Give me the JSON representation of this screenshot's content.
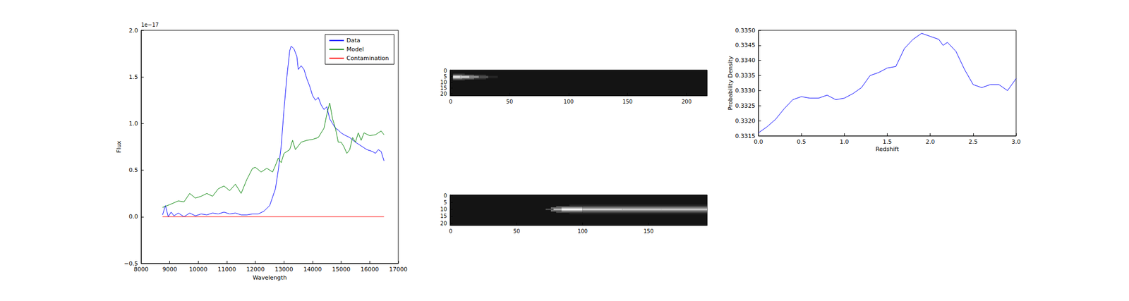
{
  "chart_data": [
    {
      "type": "line",
      "xlabel": "Wavelength",
      "ylabel": "Flux",
      "annotation": "1e−17",
      "xlim": [
        8000,
        17000
      ],
      "xticks": [
        8000,
        9000,
        10000,
        11000,
        12000,
        13000,
        14000,
        15000,
        16000,
        17000
      ],
      "ylim": [
        -0.5,
        2.0
      ],
      "yticks": [
        {
          "value": -0.5,
          "label": "−0.5"
        },
        {
          "value": 0,
          "label": "0.0"
        },
        0.5,
        {
          "value": 1.0,
          "label": "1.0"
        },
        1.5,
        {
          "value": 2.0,
          "label": "2.0"
        }
      ],
      "legend": "upper right",
      "series": [
        {
          "name": "Data",
          "color": "#0000ff",
          "x": [
            8750,
            8850,
            8950,
            9050,
            9150,
            9300,
            9500,
            9700,
            9900,
            10100,
            10300,
            10500,
            10700,
            10900,
            11100,
            11300,
            11500,
            11700,
            11900,
            12100,
            12300,
            12500,
            12700,
            12800,
            12900,
            13000,
            13100,
            13200,
            13250,
            13350,
            13450,
            13500,
            13600,
            13700,
            13800,
            13900,
            14000,
            14100,
            14200,
            14300,
            14400,
            14500,
            14600,
            14700,
            14800,
            14900,
            15000,
            15100,
            15300,
            15500,
            15700,
            15900,
            16100,
            16200,
            16300,
            16400,
            16500
          ],
          "values": [
            0.02,
            0.12,
            0.0,
            0.05,
            0.01,
            0.04,
            0.0,
            0.04,
            0.01,
            0.03,
            0.02,
            0.04,
            0.03,
            0.05,
            0.03,
            0.04,
            0.02,
            0.02,
            0.03,
            0.03,
            0.06,
            0.12,
            0.3,
            0.5,
            0.75,
            1.15,
            1.5,
            1.78,
            1.83,
            1.8,
            1.72,
            1.58,
            1.62,
            1.58,
            1.48,
            1.4,
            1.3,
            1.25,
            1.28,
            1.2,
            1.15,
            1.18,
            1.05,
            1.0,
            0.95,
            0.93,
            0.9,
            0.88,
            0.85,
            0.8,
            0.76,
            0.72,
            0.7,
            0.68,
            0.72,
            0.7,
            0.6
          ]
        },
        {
          "name": "Model",
          "color": "#008000",
          "x": [
            8750,
            9000,
            9300,
            9500,
            9700,
            9900,
            10100,
            10300,
            10500,
            10700,
            10900,
            11100,
            11300,
            11500,
            11700,
            11900,
            12000,
            12200,
            12400,
            12600,
            12700,
            12800,
            12900,
            13000,
            13200,
            13300,
            13400,
            13600,
            13800,
            14000,
            14200,
            14400,
            14500,
            14600,
            14700,
            14800,
            14900,
            15000,
            15100,
            15200,
            15300,
            15400,
            15500,
            15600,
            15700,
            15800,
            16000,
            16200,
            16400,
            16500
          ],
          "values": [
            0.1,
            0.13,
            0.17,
            0.16,
            0.25,
            0.2,
            0.22,
            0.25,
            0.22,
            0.3,
            0.33,
            0.28,
            0.35,
            0.25,
            0.4,
            0.52,
            0.53,
            0.48,
            0.52,
            0.48,
            0.55,
            0.63,
            0.58,
            0.68,
            0.72,
            0.82,
            0.72,
            0.8,
            0.82,
            0.83,
            0.85,
            0.95,
            1.1,
            1.22,
            1.05,
            0.95,
            0.8,
            0.8,
            0.75,
            0.68,
            0.72,
            0.85,
            0.8,
            0.9,
            0.82,
            0.9,
            0.87,
            0.88,
            0.92,
            0.88
          ]
        },
        {
          "name": "Contamination",
          "color": "#ff0000",
          "x": [
            8750,
            16500
          ],
          "values": [
            0,
            0
          ]
        }
      ]
    },
    {
      "type": "image",
      "xlim": [
        -0.5,
        217.5
      ],
      "xticks": [
        0,
        50,
        100,
        150,
        200
      ],
      "ylim": [
        21.5,
        -0.5
      ],
      "yticks": [
        0,
        5,
        10,
        15,
        20
      ],
      "value_range": [
        0,
        1
      ],
      "background": 0.08,
      "cells": [
        [
          2,
          12,
          3,
          0.2
        ],
        [
          2,
          10,
          4,
          0.5
        ],
        [
          10,
          20,
          4,
          0.35
        ],
        [
          20,
          30,
          4,
          0.2
        ],
        [
          2,
          8,
          5,
          0.9
        ],
        [
          8,
          16,
          5,
          0.8
        ],
        [
          16,
          24,
          5,
          0.55
        ],
        [
          24,
          32,
          5,
          0.3
        ],
        [
          32,
          40,
          5,
          0.15
        ],
        [
          2,
          8,
          6,
          1.0
        ],
        [
          8,
          16,
          6,
          0.9
        ],
        [
          16,
          24,
          6,
          0.6
        ],
        [
          24,
          32,
          6,
          0.35
        ],
        [
          32,
          40,
          6,
          0.15
        ],
        [
          2,
          10,
          7,
          0.55
        ],
        [
          10,
          20,
          7,
          0.4
        ],
        [
          20,
          30,
          7,
          0.2
        ],
        [
          2,
          12,
          8,
          0.2
        ]
      ]
    },
    {
      "type": "image",
      "xlim": [
        -0.5,
        194.5
      ],
      "xticks": [
        0,
        50,
        100,
        150
      ],
      "ylim": [
        21.5,
        -0.5
      ],
      "yticks": [
        0,
        5,
        10,
        15,
        20
      ],
      "value_range": [
        0,
        1
      ],
      "background": 0.08,
      "cells": [
        [
          90,
          195,
          7,
          0.15
        ],
        [
          80,
          100,
          8,
          0.3
        ],
        [
          100,
          195,
          8,
          0.3
        ],
        [
          76,
          84,
          9,
          0.45
        ],
        [
          84,
          100,
          9,
          0.7
        ],
        [
          100,
          195,
          9,
          0.55
        ],
        [
          72,
          78,
          10,
          0.3
        ],
        [
          78,
          84,
          10,
          0.75
        ],
        [
          84,
          100,
          10,
          1.0
        ],
        [
          100,
          130,
          10,
          0.85
        ],
        [
          130,
          160,
          10,
          0.8
        ],
        [
          160,
          195,
          10,
          0.8
        ],
        [
          76,
          84,
          11,
          0.45
        ],
        [
          84,
          100,
          11,
          0.7
        ],
        [
          100,
          195,
          11,
          0.55
        ],
        [
          80,
          100,
          12,
          0.3
        ],
        [
          100,
          195,
          12,
          0.3
        ],
        [
          90,
          195,
          13,
          0.15
        ]
      ]
    },
    {
      "type": "line",
      "xlabel": "Redshift",
      "ylabel": "Probability Density",
      "xlim": [
        0,
        3.0
      ],
      "xticks": [
        {
          "value": 0,
          "label": "0.0"
        },
        0.5,
        {
          "value": 1.0,
          "label": "1.0"
        },
        1.5,
        {
          "value": 2.0,
          "label": "2.0"
        },
        2.5,
        {
          "value": 3.0,
          "label": "3.0"
        }
      ],
      "ylim": [
        0.3315,
        0.335
      ],
      "yticks": [
        0.3315,
        {
          "value": 0.332,
          "label": "0.3320"
        },
        0.3325,
        {
          "value": 0.333,
          "label": "0.3330"
        },
        0.3335,
        {
          "value": 0.334,
          "label": "0.3340"
        },
        0.3345,
        {
          "value": 0.335,
          "label": "0.3350"
        }
      ],
      "series": [
        {
          "color": "#0000ff",
          "x": [
            0,
            0.1,
            0.2,
            0.3,
            0.4,
            0.5,
            0.6,
            0.7,
            0.8,
            0.9,
            1.0,
            1.1,
            1.2,
            1.3,
            1.4,
            1.5,
            1.6,
            1.7,
            1.8,
            1.9,
            2.0,
            2.1,
            2.15,
            2.2,
            2.3,
            2.4,
            2.5,
            2.6,
            2.7,
            2.8,
            2.9,
            3.0
          ],
          "values": [
            0.3316,
            0.3318,
            0.33205,
            0.3324,
            0.3327,
            0.3328,
            0.33275,
            0.33275,
            0.33285,
            0.3327,
            0.33275,
            0.3329,
            0.3331,
            0.3335,
            0.3336,
            0.33375,
            0.3338,
            0.3344,
            0.3347,
            0.3349,
            0.3348,
            0.3347,
            0.3345,
            0.3346,
            0.3343,
            0.3337,
            0.3332,
            0.3331,
            0.3332,
            0.3332,
            0.333,
            0.3334
          ]
        }
      ]
    }
  ]
}
